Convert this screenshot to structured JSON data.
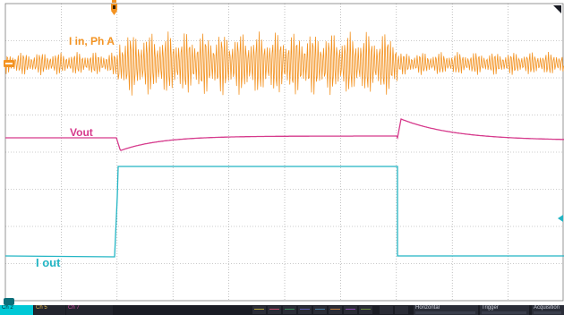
{
  "colors": {
    "i_in": "#f39322",
    "vout": "#d63a8c",
    "i_out": "#22b5c4",
    "grid": "#9a9a9a",
    "background": "#ffffff"
  },
  "waveforms": {
    "i_in_label": "I in, Ph A",
    "vout_label": "Vout",
    "i_out_label": "I out"
  },
  "icons": {
    "trigger_position": "trigger-marker-icon",
    "channel_reference": "ch-ground-marker-icon",
    "trigger_level": "trigger-level-arrow-icon",
    "corner": "corner-triangle-icon"
  },
  "statusbar": {
    "ch2_label": "Ch 2",
    "ch5_label": "Ch 5",
    "ch7_label": "Ch 7",
    "horizontal_label": "Horizontal",
    "trigger_label": "Trigger",
    "acquisition_label": "Acquisition"
  }
}
